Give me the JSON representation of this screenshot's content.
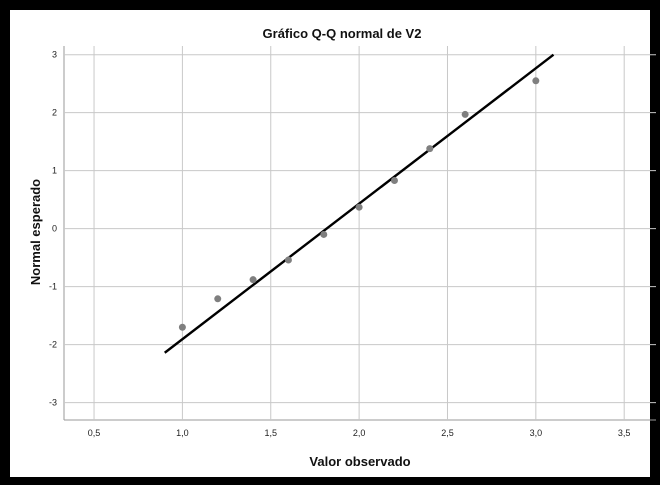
{
  "chart_data": {
    "type": "scatter",
    "title": "Gráfico Q-Q normal de V2",
    "xlabel": "Valor observado",
    "ylabel": "Normal esperado",
    "xlim": [
      0.33,
      3.68
    ],
    "ylim": [
      -3.3,
      3.15
    ],
    "xticks": [
      "0,5",
      "1,0",
      "1,5",
      "2,0",
      "2,5",
      "3,0",
      "3,5"
    ],
    "xtick_values": [
      0.5,
      1.0,
      1.5,
      2.0,
      2.5,
      3.0,
      3.5
    ],
    "yticks": [
      "3",
      "2",
      "1",
      "0",
      "-1",
      "-2",
      "-3"
    ],
    "ytick_values": [
      3,
      2,
      1,
      0,
      -1,
      -2,
      -3
    ],
    "grid": true,
    "points": {
      "x": [
        1.0,
        1.2,
        1.4,
        1.6,
        1.8,
        2.0,
        2.2,
        2.4,
        2.6,
        3.0
      ],
      "y": [
        -1.7,
        -1.21,
        -0.88,
        -0.54,
        -0.1,
        0.37,
        0.83,
        1.38,
        1.97,
        2.55
      ]
    },
    "reference_line": {
      "x": [
        0.9,
        3.1
      ],
      "y": [
        -2.14,
        3.0
      ]
    },
    "colors": {
      "points": "#7f7f7f",
      "line": "#000000",
      "grid": "#c8c8c8"
    }
  }
}
